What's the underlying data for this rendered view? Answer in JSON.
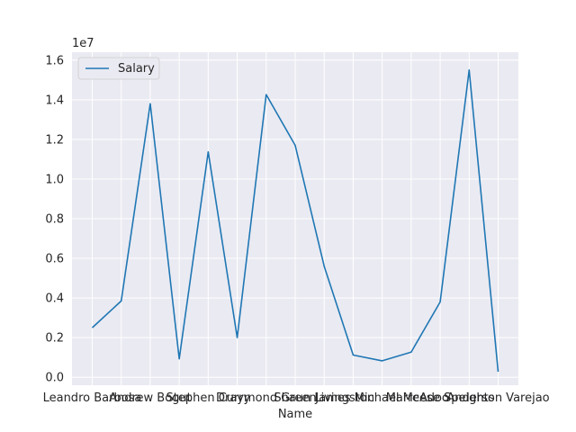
{
  "chart_data": {
    "type": "line",
    "xlabel": "Name",
    "ylabel": "",
    "y_scale_label": "1e7",
    "ylim": [
      -0.04,
      1.64
    ],
    "grid": true,
    "legend_position": "upper left",
    "categories": [
      "Leandro Barbosa",
      "",
      "Andrew Bogut",
      "",
      "Stephen Curry",
      "",
      "Draymond Green",
      "",
      "Shaun Livingston",
      "",
      "James Michael McAdoo",
      "",
      "Marreese Speights",
      "",
      "Anderson Varejao"
    ],
    "series": [
      {
        "name": "Salary",
        "color": "#1f77b4",
        "values": [
          0.25,
          0.385,
          1.38,
          0.093,
          1.137,
          0.2,
          1.426,
          1.17,
          0.56,
          0.112,
          0.083,
          0.127,
          0.38,
          1.55,
          0.028
        ]
      }
    ],
    "yticks": [
      {
        "value": 0.0,
        "label": "0.0"
      },
      {
        "value": 0.2,
        "label": "0.2"
      },
      {
        "value": 0.4,
        "label": "0.4"
      },
      {
        "value": 0.6,
        "label": "0.6"
      },
      {
        "value": 0.8,
        "label": "0.8"
      },
      {
        "value": 1.0,
        "label": "1.0"
      },
      {
        "value": 1.2,
        "label": "1.2"
      },
      {
        "value": 1.4,
        "label": "1.4"
      },
      {
        "value": 1.6,
        "label": "1.6"
      }
    ]
  }
}
